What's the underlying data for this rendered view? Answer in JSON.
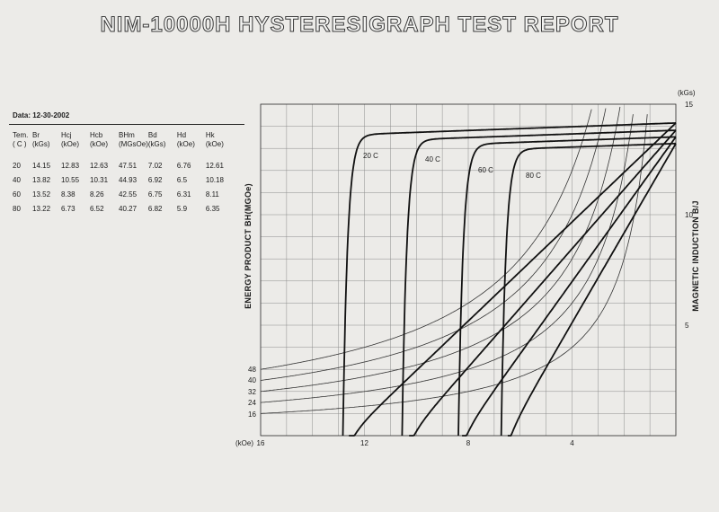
{
  "report": {
    "title": "NIM-10000H HYSTERESIGRAPH TEST REPORT",
    "date_label": "Data: 12-30-2002"
  },
  "table": {
    "headers": [
      [
        "Tem.",
        "( C )"
      ],
      [
        "Br",
        "(kGs)"
      ],
      [
        "Hcj",
        "(kOe)"
      ],
      [
        "Hcb",
        "(kOe)"
      ],
      [
        "BHm",
        "(MGsOe)"
      ],
      [
        "Bd",
        "(kGs)"
      ],
      [
        "Hd",
        "(kOe)"
      ],
      [
        "Hk",
        "(kOe)"
      ]
    ],
    "rows": [
      [
        "20",
        "14.15",
        "12.83",
        "12.63",
        "47.51",
        "7.02",
        "6.76",
        "12.61"
      ],
      [
        "40",
        "13.82",
        "10.55",
        "10.31",
        "44.93",
        "6.92",
        "6.5",
        "10.18"
      ],
      [
        "60",
        "13.52",
        "8.38",
        "8.26",
        "42.55",
        "6.75",
        "6.31",
        "8.11"
      ],
      [
        "80",
        "13.22",
        "6.73",
        "6.52",
        "40.27",
        "6.82",
        "5.9",
        "6.35"
      ]
    ]
  },
  "chart_data": {
    "type": "line",
    "xlabel": "",
    "x_unit_label": "(kOe)",
    "ylabel_left": "ENERGY PRODUCT BH(MGOe)",
    "ylabel_right": "MAGNETIC INDUCTION B/J",
    "y_unit_label": "(kGs)",
    "xlim": [
      16,
      0
    ],
    "ylim": [
      0,
      15
    ],
    "x_ticks": [
      "16",
      "12",
      "8",
      "4"
    ],
    "y_ticks_right": [
      "15",
      "10",
      "5"
    ],
    "bh_ticks": [
      "48",
      "40",
      "32",
      "24",
      "16"
    ],
    "grid": true,
    "series": [
      {
        "name": "20 C",
        "Br": 14.15,
        "Hcb": 12.63,
        "Hcj": 12.83,
        "BHmax": 47.51
      },
      {
        "name": "40 C",
        "Br": 13.82,
        "Hcb": 10.31,
        "Hcj": 10.55,
        "BHmax": 44.93
      },
      {
        "name": "60 C",
        "Br": 13.52,
        "Hcb": 8.26,
        "Hcj": 8.38,
        "BHmax": 42.55
      },
      {
        "name": "80 C",
        "Br": 13.22,
        "Hcb": 6.52,
        "Hcj": 6.73,
        "BHmax": 40.27
      }
    ],
    "bh_contours": [
      16,
      24,
      32,
      40,
      48
    ]
  }
}
